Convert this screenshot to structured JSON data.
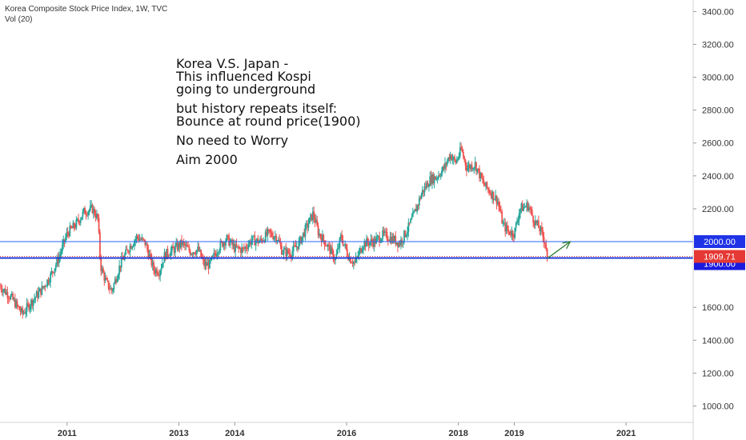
{
  "header": {
    "symbol_line": "Korea Composite Stock Price Index, 1W, TVC",
    "volume_line": "Vol (20)"
  },
  "annotation": {
    "lines": [
      "Korea V.S. Japan -",
      "This influenced Kospi",
      "going to underground",
      "",
      "but history repeats itself:",
      "Bounce at round price(1900)",
      "",
      "No need to Worry",
      "",
      "Aim 2000"
    ]
  },
  "colors": {
    "up": "#26a69a",
    "down": "#ef5350",
    "line_2000": "#2962ff",
    "line_1900": "#1f3bd6",
    "price_badge": "#e53935",
    "arrow": "#2e7d32"
  },
  "chart_data": {
    "type": "candlestick",
    "y_axis": {
      "ticks": [
        "3400.00",
        "3200.00",
        "3000.00",
        "2800.00",
        "2600.00",
        "2400.00",
        "2200.00",
        "1600.00",
        "1400.00",
        "1200.00",
        "1000.00"
      ],
      "range": [
        900,
        3470
      ]
    },
    "x_axis": {
      "ticks": [
        "2011",
        "2013",
        "2014",
        "2016",
        "2018",
        "2019",
        "2021"
      ],
      "tick_years": [
        2011.0,
        2013.0,
        2014.0,
        2016.0,
        2018.0,
        2019.0,
        2021.0
      ],
      "range": [
        2009.8,
        2022.2
      ]
    },
    "horizontal_levels": [
      {
        "value": 2000.0,
        "label": "2000.00"
      },
      {
        "value": 1900.0,
        "label": "1900.00"
      }
    ],
    "last_price": {
      "value": 1909.71,
      "label": "1909.71"
    },
    "trend_arrow": {
      "from": {
        "x": 2019.6,
        "y": 1900
      },
      "to": {
        "x": 2020.0,
        "y": 2000
      }
    },
    "price_path": [
      [
        2009.8,
        1730
      ],
      [
        2010.0,
        1660
      ],
      [
        2010.2,
        1560
      ],
      [
        2010.4,
        1650
      ],
      [
        2010.55,
        1710
      ],
      [
        2010.7,
        1790
      ],
      [
        2010.85,
        1900
      ],
      [
        2011.0,
        2050
      ],
      [
        2011.15,
        2100
      ],
      [
        2011.3,
        2180
      ],
      [
        2011.45,
        2200
      ],
      [
        2011.55,
        2140
      ],
      [
        2011.6,
        1850
      ],
      [
        2011.7,
        1750
      ],
      [
        2011.8,
        1700
      ],
      [
        2011.95,
        1860
      ],
      [
        2012.1,
        1960
      ],
      [
        2012.25,
        2030
      ],
      [
        2012.4,
        1990
      ],
      [
        2012.55,
        1830
      ],
      [
        2012.65,
        1820
      ],
      [
        2012.75,
        1920
      ],
      [
        2012.9,
        1950
      ],
      [
        2013.05,
        1990
      ],
      [
        2013.2,
        1940
      ],
      [
        2013.35,
        1950
      ],
      [
        2013.45,
        1860
      ],
      [
        2013.55,
        1860
      ],
      [
        2013.7,
        1960
      ],
      [
        2013.85,
        2020
      ],
      [
        2014.0,
        1960
      ],
      [
        2014.15,
        1950
      ],
      [
        2014.3,
        2010
      ],
      [
        2014.45,
        2000
      ],
      [
        2014.6,
        2050
      ],
      [
        2014.75,
        2030
      ],
      [
        2014.85,
        1940
      ],
      [
        2015.0,
        1930
      ],
      [
        2015.15,
        1990
      ],
      [
        2015.3,
        2100
      ],
      [
        2015.4,
        2170
      ],
      [
        2015.5,
        2050
      ],
      [
        2015.65,
        1980
      ],
      [
        2015.8,
        1890
      ],
      [
        2015.9,
        2030
      ],
      [
        2016.05,
        1900
      ],
      [
        2016.15,
        1870
      ],
      [
        2016.3,
        1990
      ],
      [
        2016.5,
        2000
      ],
      [
        2016.65,
        2040
      ],
      [
        2016.8,
        2020
      ],
      [
        2016.95,
        1990
      ],
      [
        2017.1,
        2080
      ],
      [
        2017.2,
        2160
      ],
      [
        2017.35,
        2300
      ],
      [
        2017.5,
        2380
      ],
      [
        2017.6,
        2390
      ],
      [
        2017.75,
        2450
      ],
      [
        2017.85,
        2530
      ],
      [
        2017.95,
        2480
      ],
      [
        2018.05,
        2560
      ],
      [
        2018.15,
        2450
      ],
      [
        2018.3,
        2470
      ],
      [
        2018.45,
        2350
      ],
      [
        2018.55,
        2310
      ],
      [
        2018.7,
        2250
      ],
      [
        2018.8,
        2100
      ],
      [
        2018.9,
        2060
      ],
      [
        2019.0,
        2050
      ],
      [
        2019.1,
        2200
      ],
      [
        2019.25,
        2220
      ],
      [
        2019.35,
        2130
      ],
      [
        2019.45,
        2080
      ],
      [
        2019.55,
        2000
      ],
      [
        2019.6,
        1909.71
      ]
    ]
  }
}
